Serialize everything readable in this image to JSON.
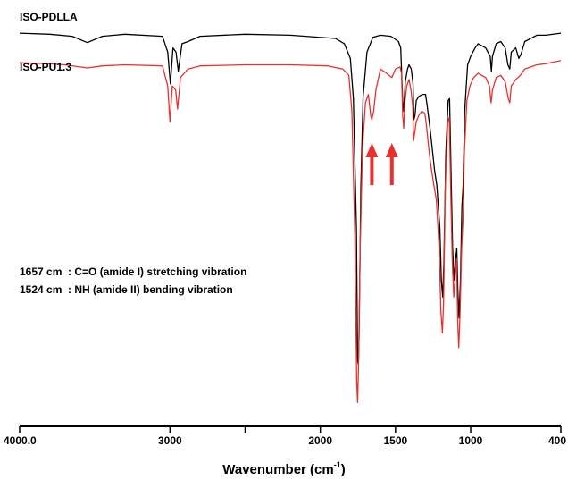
{
  "chart_data": {
    "type": "line",
    "xlabel": "Wavenumber (cm",
    "xlabel_sup": "-1",
    "xlabel_close": ")",
    "xlim": [
      4000,
      400
    ],
    "x_reversed": true,
    "ylabel": "",
    "y_axis_visible": false,
    "grid": false,
    "x_ticks": [
      {
        "value": 4000,
        "label": "4000.0"
      },
      {
        "value": 3000,
        "label": "3000"
      },
      {
        "value": 2500,
        "label": ""
      },
      {
        "value": 2000,
        "label": "2000"
      },
      {
        "value": 1500,
        "label": "1500"
      },
      {
        "value": 1000,
        "label": "1000"
      },
      {
        "value": 400,
        "label": "400"
      }
    ],
    "series": [
      {
        "name": "ISO-PDLLA",
        "color": "#000000",
        "points": [
          [
            4000,
            97
          ],
          [
            3800,
            96.5
          ],
          [
            3650,
            95.5
          ],
          [
            3550,
            92.5
          ],
          [
            3450,
            95.5
          ],
          [
            3300,
            96.5
          ],
          [
            3050,
            95.5
          ],
          [
            3015,
            88
          ],
          [
            2997,
            73
          ],
          [
            2980,
            90
          ],
          [
            2960,
            88
          ],
          [
            2945,
            79
          ],
          [
            2920,
            92
          ],
          [
            2880,
            93
          ],
          [
            2800,
            95.5
          ],
          [
            2500,
            96.5
          ],
          [
            2200,
            96
          ],
          [
            1900,
            94.5
          ],
          [
            1840,
            92
          ],
          [
            1800,
            85
          ],
          [
            1780,
            66
          ],
          [
            1760,
            5
          ],
          [
            1752,
            -58
          ],
          [
            1747,
            -60
          ],
          [
            1742,
            -45
          ],
          [
            1730,
            25
          ],
          [
            1715,
            67
          ],
          [
            1690,
            88
          ],
          [
            1650,
            95
          ],
          [
            1600,
            96
          ],
          [
            1530,
            95.5
          ],
          [
            1480,
            93
          ],
          [
            1465,
            90
          ],
          [
            1452,
            65
          ],
          [
            1445,
            60
          ],
          [
            1435,
            74
          ],
          [
            1420,
            80
          ],
          [
            1410,
            82
          ],
          [
            1395,
            80
          ],
          [
            1383,
            73
          ],
          [
            1378,
            56
          ],
          [
            1370,
            58
          ],
          [
            1362,
            65
          ],
          [
            1345,
            67
          ],
          [
            1320,
            68
          ],
          [
            1300,
            68
          ],
          [
            1290,
            63
          ],
          [
            1270,
            52
          ],
          [
            1255,
            42
          ],
          [
            1240,
            32
          ],
          [
            1225,
            25
          ],
          [
            1205,
            5
          ],
          [
            1195,
            -20
          ],
          [
            1186,
            -28
          ],
          [
            1178,
            -12
          ],
          [
            1165,
            40
          ],
          [
            1150,
            65
          ],
          [
            1140,
            66
          ],
          [
            1130,
            30
          ],
          [
            1120,
            -5
          ],
          [
            1110,
            -20
          ],
          [
            1100,
            -10
          ],
          [
            1092,
            -5
          ],
          [
            1085,
            -25
          ],
          [
            1077,
            -38
          ],
          [
            1068,
            -20
          ],
          [
            1058,
            15
          ],
          [
            1050,
            25
          ],
          [
            1040,
            60
          ],
          [
            1020,
            82
          ],
          [
            1000,
            86
          ],
          [
            970,
            90
          ],
          [
            950,
            92
          ],
          [
            900,
            90
          ],
          [
            870,
            86
          ],
          [
            862,
            79
          ],
          [
            855,
            86
          ],
          [
            830,
            92
          ],
          [
            800,
            93
          ],
          [
            770,
            90
          ],
          [
            752,
            82
          ],
          [
            740,
            80
          ],
          [
            730,
            88
          ],
          [
            700,
            90
          ],
          [
            680,
            85
          ],
          [
            665,
            87
          ],
          [
            640,
            93
          ],
          [
            560,
            96
          ],
          [
            500,
            96
          ],
          [
            400,
            97
          ]
        ]
      },
      {
        "name": "ISO-PU1.3",
        "color": "#e8312f",
        "points": [
          [
            4000,
            83
          ],
          [
            3800,
            82.5
          ],
          [
            3700,
            82
          ],
          [
            3550,
            80.5
          ],
          [
            3450,
            81.5
          ],
          [
            3300,
            82
          ],
          [
            3050,
            81.5
          ],
          [
            3015,
            72
          ],
          [
            3000,
            55
          ],
          [
            2985,
            72
          ],
          [
            2962,
            70
          ],
          [
            2950,
            61
          ],
          [
            2930,
            76
          ],
          [
            2880,
            80
          ],
          [
            2800,
            81.5
          ],
          [
            2500,
            82
          ],
          [
            2200,
            82
          ],
          [
            1950,
            81.5
          ],
          [
            1850,
            80
          ],
          [
            1810,
            77
          ],
          [
            1790,
            60
          ],
          [
            1770,
            0
          ],
          [
            1758,
            -68
          ],
          [
            1752,
            -78
          ],
          [
            1746,
            -62
          ],
          [
            1735,
            -5
          ],
          [
            1720,
            42
          ],
          [
            1700,
            64
          ],
          [
            1680,
            68
          ],
          [
            1665,
            58
          ],
          [
            1657,
            56
          ],
          [
            1645,
            60
          ],
          [
            1630,
            70
          ],
          [
            1600,
            80
          ],
          [
            1560,
            78
          ],
          [
            1524,
            76
          ],
          [
            1500,
            80
          ],
          [
            1470,
            81
          ],
          [
            1460,
            78
          ],
          [
            1452,
            58
          ],
          [
            1445,
            52
          ],
          [
            1438,
            64
          ],
          [
            1425,
            72
          ],
          [
            1410,
            75
          ],
          [
            1397,
            70
          ],
          [
            1385,
            62
          ],
          [
            1380,
            46
          ],
          [
            1372,
            50
          ],
          [
            1362,
            55
          ],
          [
            1345,
            58
          ],
          [
            1325,
            60
          ],
          [
            1305,
            59
          ],
          [
            1295,
            54
          ],
          [
            1275,
            40
          ],
          [
            1262,
            33
          ],
          [
            1245,
            25
          ],
          [
            1228,
            18
          ],
          [
            1210,
            -5
          ],
          [
            1198,
            -35
          ],
          [
            1188,
            -45
          ],
          [
            1180,
            -30
          ],
          [
            1168,
            25
          ],
          [
            1152,
            55
          ],
          [
            1142,
            57
          ],
          [
            1132,
            20
          ],
          [
            1122,
            -12
          ],
          [
            1112,
            -28
          ],
          [
            1102,
            -18
          ],
          [
            1093,
            -10
          ],
          [
            1086,
            -40
          ],
          [
            1079,
            -52
          ],
          [
            1070,
            -35
          ],
          [
            1060,
            -5
          ],
          [
            1050,
            10
          ],
          [
            1042,
            40
          ],
          [
            1025,
            65
          ],
          [
            1005,
            72
          ],
          [
            980,
            76
          ],
          [
            950,
            78
          ],
          [
            900,
            76
          ],
          [
            875,
            72
          ],
          [
            864,
            64
          ],
          [
            855,
            70
          ],
          [
            830,
            76
          ],
          [
            800,
            77
          ],
          [
            770,
            74
          ],
          [
            750,
            66
          ],
          [
            740,
            64
          ],
          [
            730,
            72
          ],
          [
            700,
            75
          ],
          [
            670,
            77
          ],
          [
            640,
            80
          ],
          [
            560,
            82
          ],
          [
            500,
            82.5
          ],
          [
            400,
            84
          ]
        ]
      }
    ],
    "annotations": [
      {
        "type": "arrow",
        "x": 1657,
        "color": "#e8312f"
      },
      {
        "type": "arrow",
        "x": 1524,
        "color": "#e8312f"
      }
    ],
    "notes": [
      "1657 cm  : C=O (amide I) stretching vibration",
      "1524 cm  : NH (amide II) bending vibration"
    ]
  }
}
